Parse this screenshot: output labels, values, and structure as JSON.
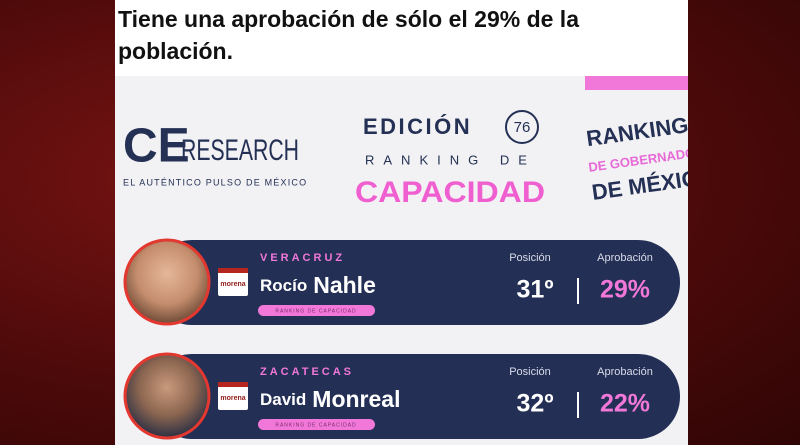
{
  "post": {
    "caption": "Tiene una aprobación de sólo el 29% de la población."
  },
  "header": {
    "logo": {
      "mark": "CE",
      "name": "RESEARCH",
      "tagline": "EL AUTÉNTICO PULSO DE MÉXICO"
    },
    "edition_label": "EDICIÓN",
    "edition_number": "76",
    "subtitle": "RANKING DE",
    "title": "CAPACIDAD",
    "badge": [
      "RANKING",
      "DE GOBERNADORES",
      "DE MÉXICO"
    ]
  },
  "rankings": [
    {
      "state": "VERACRUZ",
      "party": "morena",
      "first_name": "Rocío",
      "last_name": "Nahle",
      "tag": "RANKING DE CAPACIDAD",
      "position_label": "Posición",
      "position": "31º",
      "approval_label": "Aprobación",
      "approval": "29%"
    },
    {
      "state": "ZACATECAS",
      "party": "morena",
      "first_name": "David",
      "last_name": "Monreal",
      "tag": "RANKING DE CAPACIDAD",
      "position_label": "Posición",
      "position": "32º",
      "approval_label": "Aprobación",
      "approval": "22%"
    }
  ]
}
